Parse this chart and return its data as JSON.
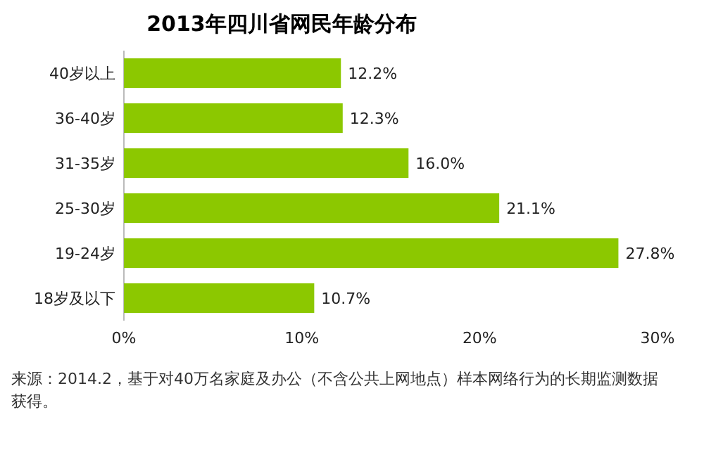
{
  "chart_data": {
    "type": "bar",
    "orientation": "horizontal",
    "title": "2013年四川省网民年龄分布",
    "categories": [
      "40岁以上",
      "36-40岁",
      "31-35岁",
      "25-30岁",
      "19-24岁",
      "18岁及以下"
    ],
    "values": [
      12.2,
      12.3,
      16.0,
      21.1,
      27.8,
      10.7
    ],
    "value_labels": [
      "12.2%",
      "12.3%",
      "16.0%",
      "21.1%",
      "27.8%",
      "10.7%"
    ],
    "color": "#8cc800",
    "xlim": [
      0,
      30
    ],
    "xticks": [
      {
        "value": 0,
        "label": "0%"
      },
      {
        "value": 10,
        "label": "10%"
      },
      {
        "value": 20,
        "label": "20%"
      },
      {
        "value": 30,
        "label": "30%"
      }
    ],
    "annotations": [
      "来源：2014.2，基于对40万名家庭及办公（不含公共上网地点）样本网络行为的长期监测数据获得。"
    ]
  }
}
